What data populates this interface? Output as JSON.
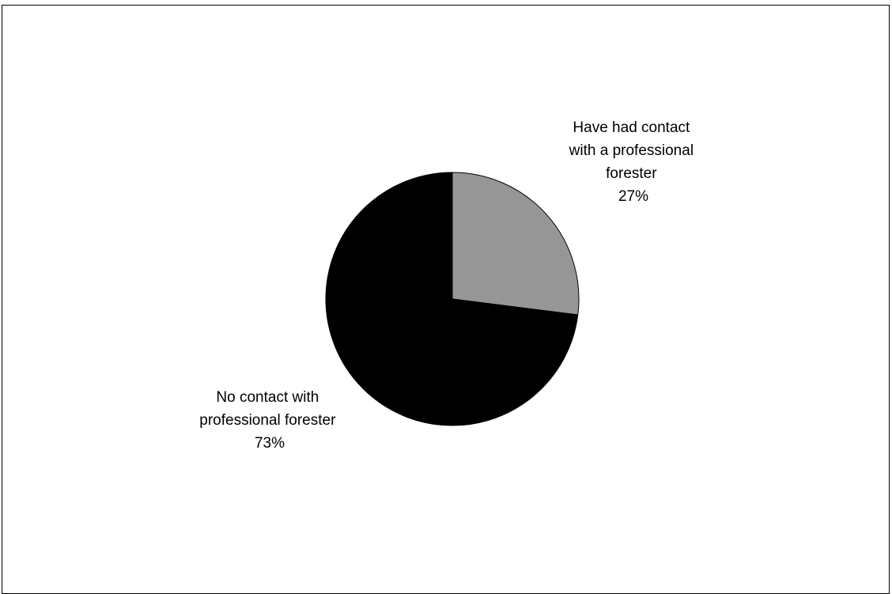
{
  "chart_data": {
    "type": "pie",
    "title": "",
    "slices": [
      {
        "label_lines": [
          "Have had contact",
          "with a professional",
          "forester"
        ],
        "value": 27,
        "value_label": "27%",
        "color": "#969696"
      },
      {
        "label_lines": [
          "No contact with",
          "professional forester"
        ],
        "value": 73,
        "value_label": "73%",
        "color": "#000000"
      }
    ],
    "start_angle_deg": 0,
    "direction": "clockwise",
    "legend": "none",
    "slice_outline_color": "#000000"
  }
}
